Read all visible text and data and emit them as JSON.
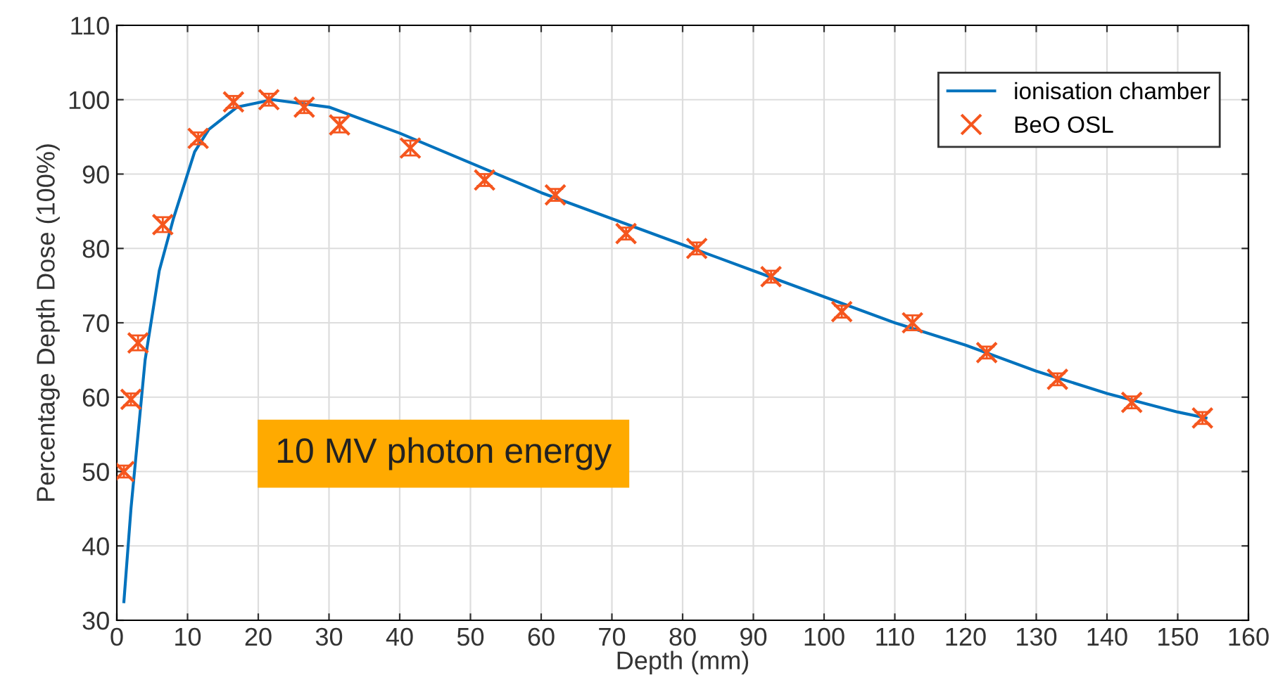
{
  "chart_data": {
    "type": "line",
    "xlabel": "Depth (mm)",
    "ylabel": "Percentage Depth Dose (100%)",
    "xlim": [
      0,
      160
    ],
    "xticks": [
      0,
      10,
      20,
      30,
      40,
      50,
      60,
      70,
      80,
      90,
      100,
      110,
      120,
      130,
      140,
      150,
      160
    ],
    "ylim": [
      30,
      110
    ],
    "yticks": [
      30,
      40,
      50,
      60,
      70,
      80,
      90,
      100,
      110
    ],
    "grid": true,
    "legend": "top right",
    "annotations": [
      "10 MV photon energy"
    ],
    "series": [
      {
        "name": "ionisation chamber",
        "color": "#0072bd",
        "marker": "none",
        "line_style": "solid",
        "x": [
          1,
          2,
          4,
          6,
          8,
          11,
          13,
          17,
          22,
          30,
          40,
          50,
          60,
          70,
          80,
          90,
          100,
          110,
          120,
          130,
          140,
          150,
          154
        ],
        "values": [
          32.5,
          45,
          65,
          77,
          84,
          93,
          96,
          99,
          100,
          99,
          95.5,
          91.5,
          87.5,
          84,
          80.5,
          77,
          73.5,
          70,
          67,
          63.5,
          60.5,
          58,
          57.2
        ]
      },
      {
        "name": "BeO OSL",
        "type": "scatter",
        "color": "#f5561e",
        "marker": "cross",
        "x": [
          1,
          2,
          3,
          6.5,
          11.5,
          16.5,
          21.5,
          26.5,
          31.5,
          41.5,
          52,
          62,
          72,
          82,
          92.5,
          102.5,
          112.5,
          123,
          133,
          143.5,
          153.5
        ],
        "values": [
          50,
          59.7,
          67.3,
          83.2,
          94.8,
          99.7,
          100,
          99,
          96.6,
          93.5,
          89.2,
          87.2,
          82,
          80,
          76.2,
          71.5,
          70,
          66,
          62.4,
          59.3,
          57.2
        ],
        "errors": [
          0.8,
          0.8,
          1,
          1,
          0.8,
          0.8,
          0.8,
          0.8,
          1,
          1,
          0.8,
          0.8,
          0.8,
          0.8,
          0.8,
          0.8,
          1,
          0.8,
          0.8,
          0.8,
          0.8
        ]
      }
    ]
  }
}
